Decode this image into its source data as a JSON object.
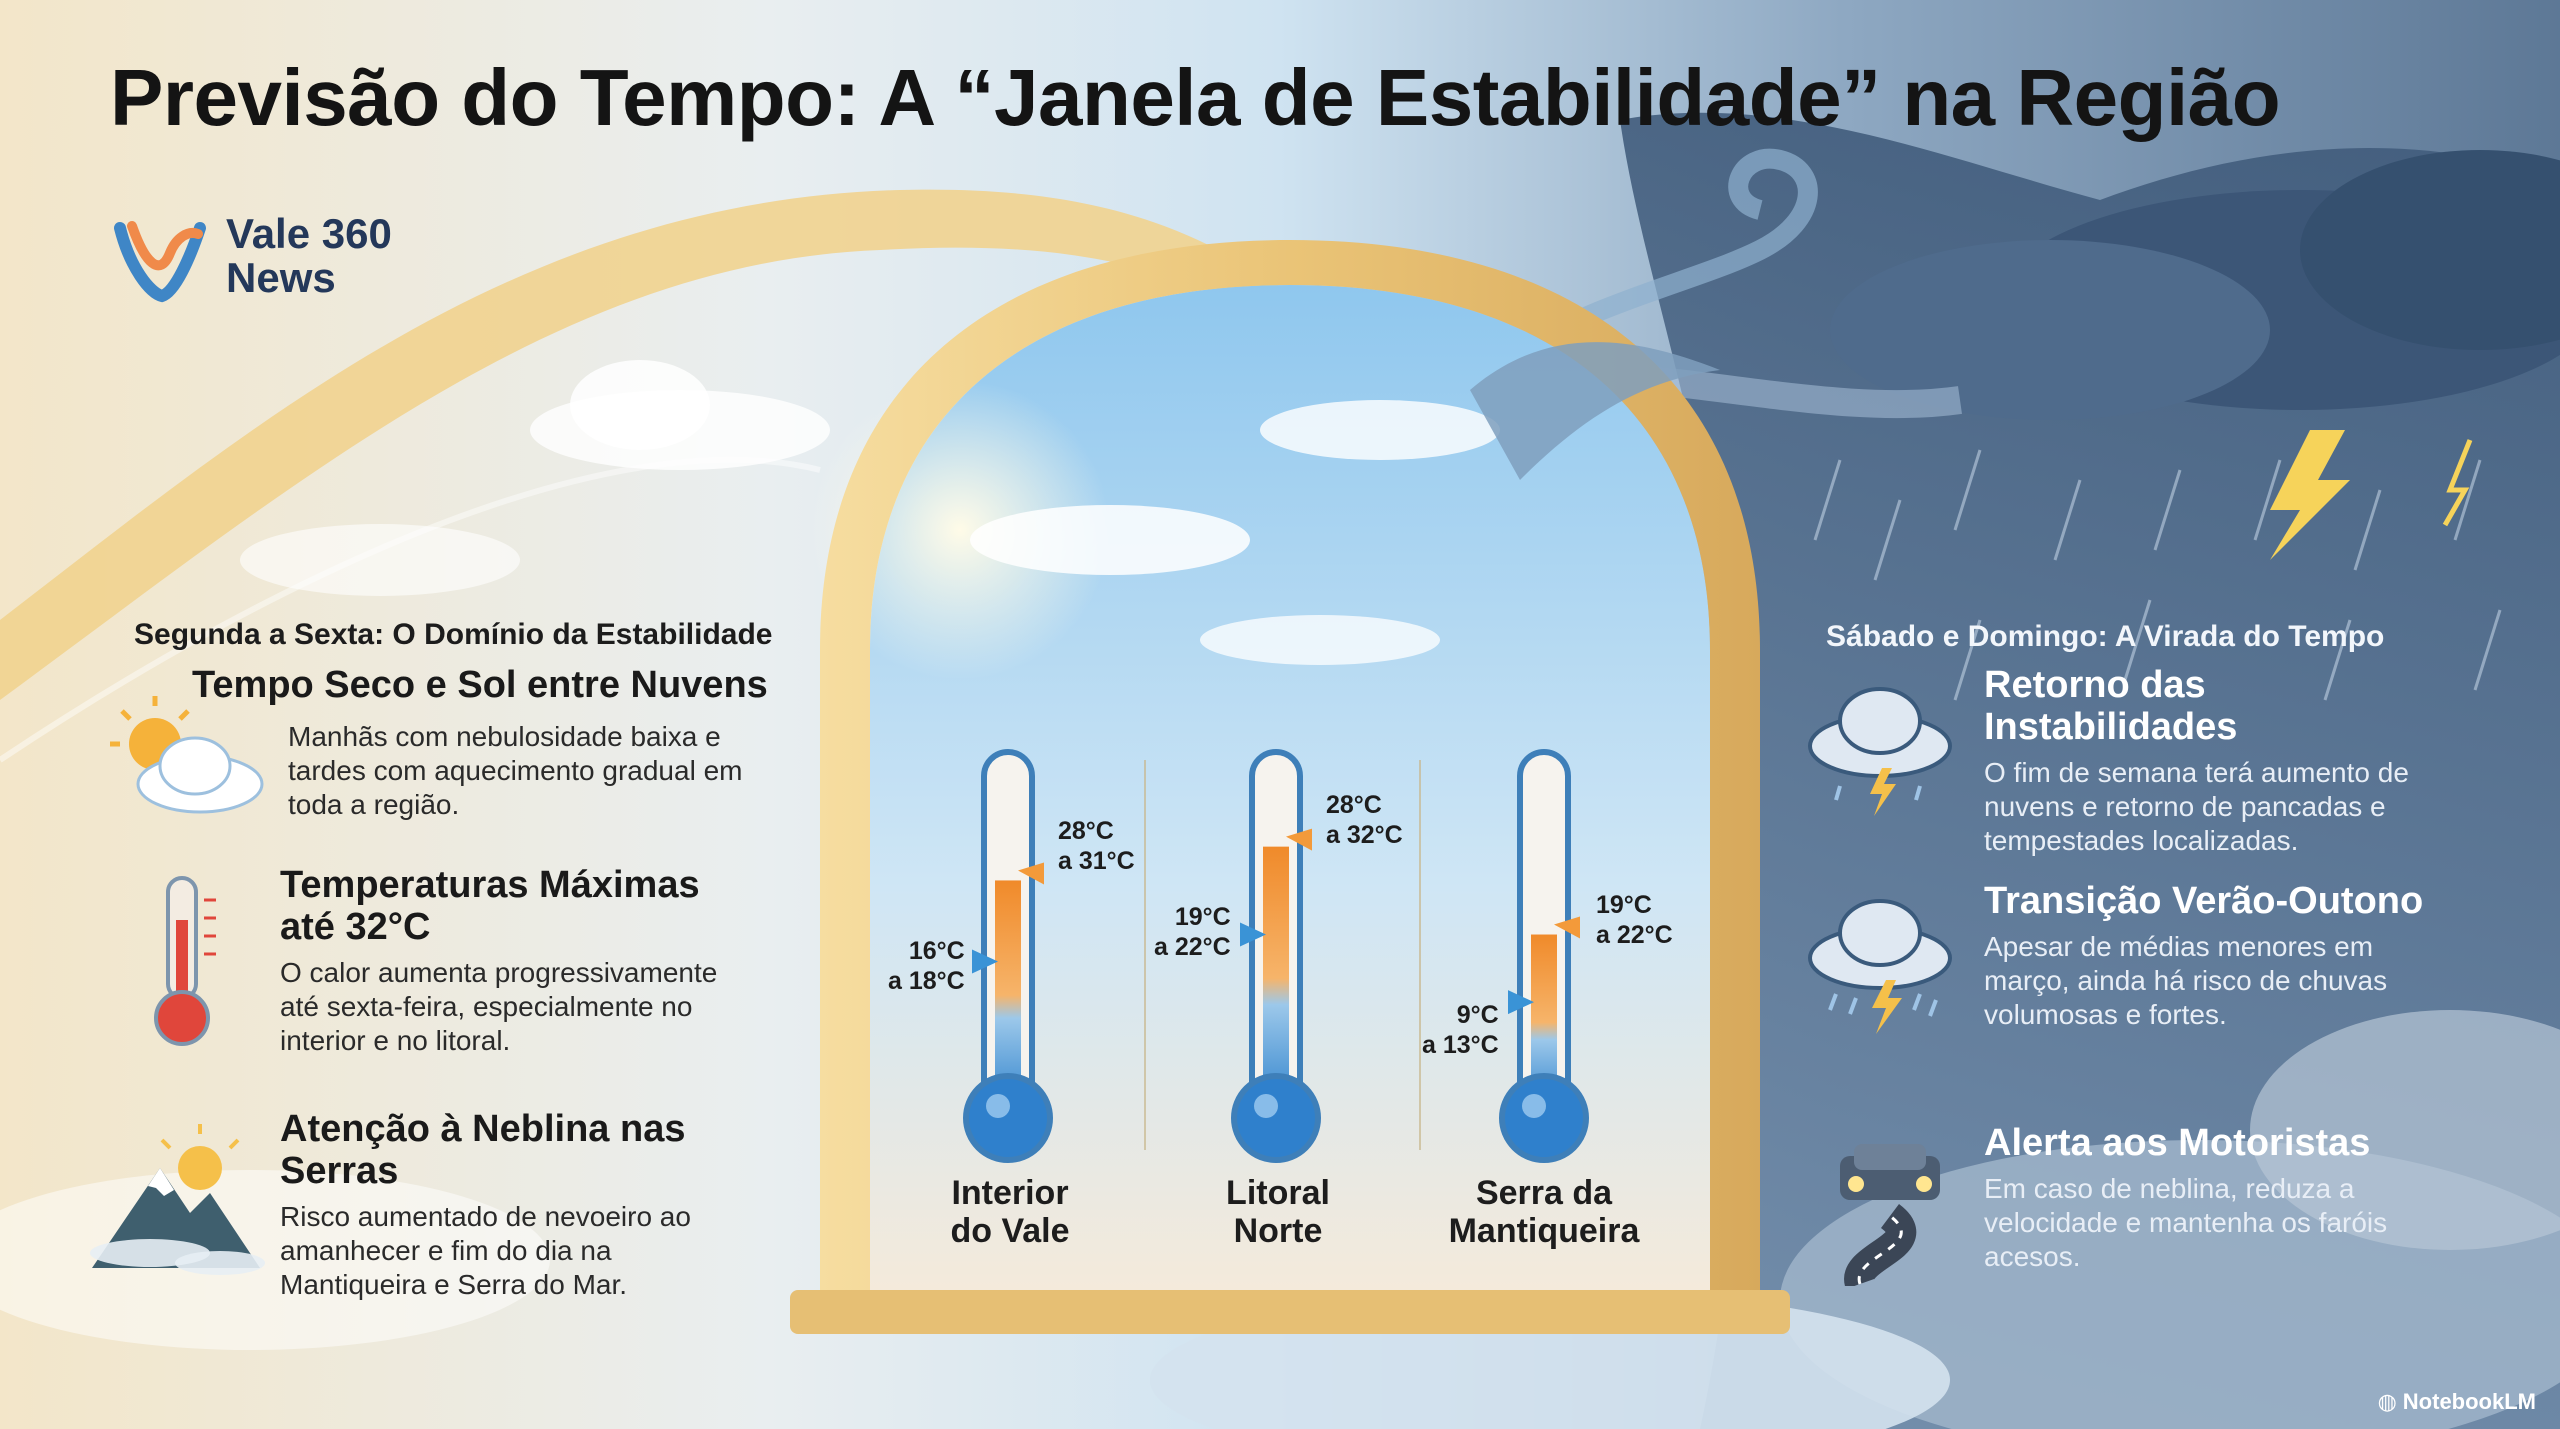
{
  "title": "Previsão do Tempo:  A “Janela de Estabilidade” na Região",
  "logo": {
    "line1": "Vale 360",
    "line2": "News"
  },
  "left": {
    "heading": "Segunda a Sexta: O Domínio da Estabilidade",
    "items": [
      {
        "title": "Tempo Seco e Sol entre Nuvens",
        "text": "Manhãs com nebulosidade baixa e tardes com aquecimento gradual em toda a região.",
        "icon": "sun-cloud-icon"
      },
      {
        "title": "Temperaturas Máximas até 32°C",
        "text": "O calor aumenta progressivamente até sexta-feira, especialmente no interior e no litoral.",
        "icon": "thermometer-icon"
      },
      {
        "title": "Atenção à Neblina nas Serras",
        "text": "Risco aumentado de nevoeiro ao amanhecer e fim do dia na Mantiqueira e Serra do Mar.",
        "icon": "mountain-fog-icon"
      }
    ]
  },
  "right": {
    "heading": "Sábado e Domingo: A Virada do Tempo",
    "items": [
      {
        "title": "Retorno das Instabilidades",
        "text": "O fim de semana terá aumento de nuvens e retorno de pancadas e tempestades localizadas.",
        "icon": "storm-cloud-icon"
      },
      {
        "title": "Transição Verão-Outono",
        "text": "Apesar de médias menores em março, ainda há risco de chuvas volumosas e fortes.",
        "icon": "heavy-rain-icon"
      },
      {
        "title": "Alerta aos Motoristas",
        "text": "Em caso de neblina, reduza a velocidade e mantenha os faróis acesos.",
        "icon": "car-road-icon"
      }
    ]
  },
  "thermometers": [
    {
      "name": "Interior do Vale",
      "line1": "Interior",
      "line2": "do Vale",
      "max1": "28°C",
      "max2": "a 31°C",
      "min1": "16°C",
      "min2": "a 18°C",
      "max_level": 0.62,
      "min_level": 0.38
    },
    {
      "name": "Litoral Norte",
      "line1": "Litoral",
      "line2": "Norte",
      "max1": "28°C",
      "max2": "a 32°C",
      "min1": "19°C",
      "min2": "a 22°C",
      "max_level": 0.72,
      "min_level": 0.46
    },
    {
      "name": "Serra da Mantiqueira",
      "line1": "Serra da",
      "line2": "Mantiqueira",
      "max1": "19°C",
      "max2": "a 22°C",
      "min1": "9°C",
      "min2": "a 13°C",
      "max_level": 0.46,
      "min_level": 0.26
    }
  ],
  "footer": {
    "brand": "NotebookLM"
  },
  "colors": {
    "warm": "#f39a3a",
    "cool": "#3a93d6",
    "frame": "#efc978",
    "storm": "#4d6a8a"
  }
}
